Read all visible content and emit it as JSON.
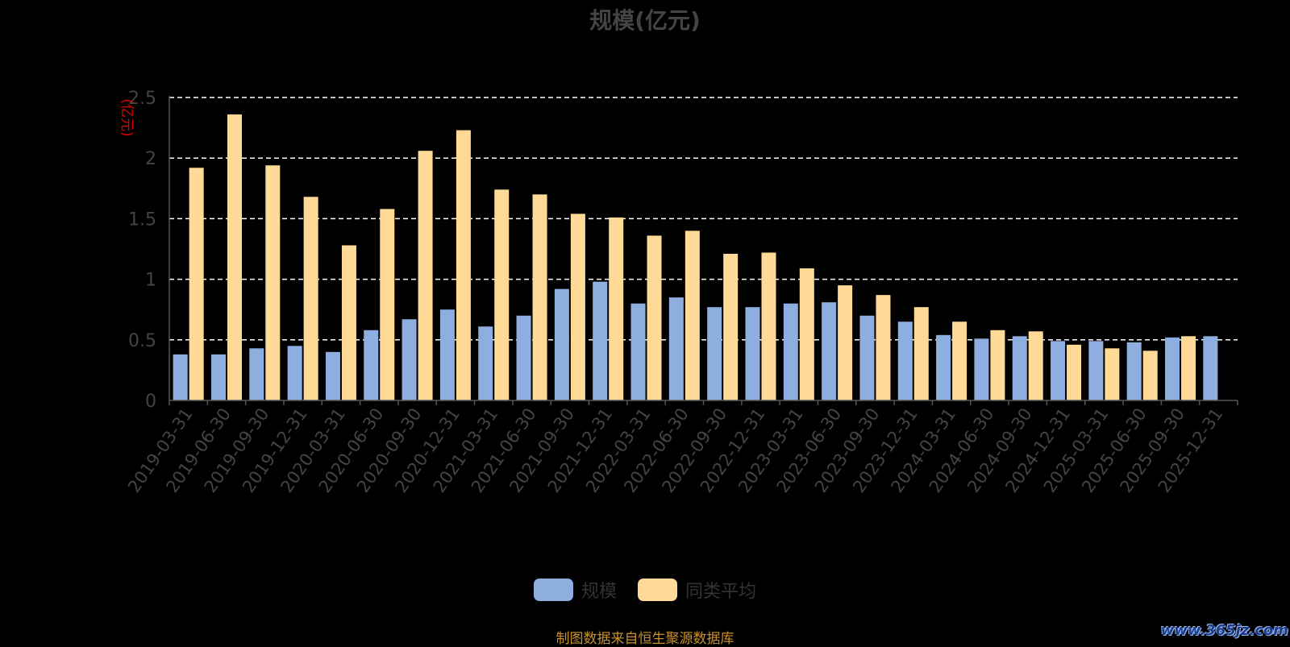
{
  "page": {
    "source_note": "制图数据来自恒生聚源数据库",
    "watermark": "www.365jz.com"
  },
  "colors": {
    "background": "#000000",
    "series_scale": "#8eaee0",
    "series_avg": "#ffd996",
    "grid": "#ffffff",
    "axis_text": "#444444",
    "unit_label": "#e00000",
    "source_note": "#c8902a"
  },
  "chart_data": {
    "type": "bar",
    "title": "规模(亿元)",
    "ylabel": "(亿元)",
    "xlabel": "",
    "ylim": [
      0,
      2.5
    ],
    "yticks": [
      "0",
      "0.5",
      "1",
      "1.5",
      "2",
      "2.5"
    ],
    "grid": true,
    "legend_position": "bottom",
    "categories": [
      "2019-03-31",
      "2019-06-30",
      "2019-09-30",
      "2019-12-31",
      "2020-03-31",
      "2020-06-30",
      "2020-09-30",
      "2020-12-31",
      "2021-03-31",
      "2021-06-30",
      "2021-09-30",
      "2021-12-31",
      "2022-03-31",
      "2022-06-30",
      "2022-09-30",
      "2022-12-31",
      "2023-03-31",
      "2023-06-30",
      "2023-09-30",
      "2023-12-31",
      "2024-03-31",
      "2024-06-30",
      "2024-09-30",
      "2024-12-31",
      "2025-03-31",
      "2025-06-30",
      "2025-09-30",
      "2025-12-31"
    ],
    "series": [
      {
        "name": "规模",
        "color": "#8eaee0",
        "values": [
          0.38,
          0.38,
          0.43,
          0.45,
          0.4,
          0.58,
          0.67,
          0.75,
          0.61,
          0.7,
          0.92,
          0.98,
          0.8,
          0.85,
          0.77,
          0.77,
          0.8,
          0.81,
          0.7,
          0.65,
          0.54,
          0.51,
          0.53,
          0.49,
          0.49,
          0.48,
          0.52,
          0.53
        ]
      },
      {
        "name": "同类平均",
        "color": "#ffd996",
        "values": [
          1.92,
          2.36,
          1.94,
          1.68,
          1.28,
          1.58,
          2.06,
          2.23,
          1.74,
          1.7,
          1.54,
          1.51,
          1.36,
          1.4,
          1.21,
          1.22,
          1.09,
          0.95,
          0.87,
          0.77,
          0.65,
          0.58,
          0.57,
          0.46,
          0.43,
          0.41,
          0.53,
          null
        ]
      }
    ]
  }
}
